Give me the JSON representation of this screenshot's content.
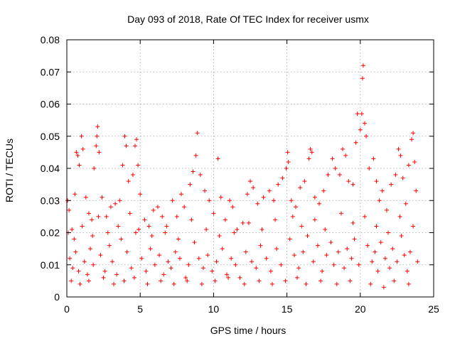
{
  "chart_data": {
    "type": "scatter",
    "title": "Day 093 of 2018, Rate Of TEC Index for receiver usmx",
    "xlabel": "GPS time / hours",
    "ylabel": "ROTI / TECUs",
    "xlim": [
      0,
      25
    ],
    "ylim": [
      0,
      0.08
    ],
    "xticks": [
      0,
      5,
      10,
      15,
      20,
      25
    ],
    "yticks": [
      0,
      0.01,
      0.02,
      0.03,
      0.04,
      0.05,
      0.06,
      0.07,
      0.08
    ],
    "xtick_labels": [
      "0",
      "5",
      "10",
      "15",
      "20",
      "25"
    ],
    "ytick_labels": [
      "0",
      "0.01",
      "0.02",
      "0.03",
      "0.04",
      "0.05",
      "0.06",
      "0.07",
      "0.08"
    ],
    "grid": true,
    "marker": "+",
    "series_color": "#ff0000",
    "series": [
      {
        "name": "ROTI",
        "points": [
          [
            0.05,
            0.03
          ],
          [
            0.15,
            0.027
          ],
          [
            0.35,
            0.021
          ],
          [
            0.55,
            0.032
          ],
          [
            0.65,
            0.045
          ],
          [
            0.75,
            0.044
          ],
          [
            0.85,
            0.041
          ],
          [
            1.0,
            0.05
          ],
          [
            1.1,
            0.046
          ],
          [
            1.3,
            0.031
          ],
          [
            1.5,
            0.026
          ],
          [
            1.7,
            0.024
          ],
          [
            1.85,
            0.04
          ],
          [
            2.0,
            0.047
          ],
          [
            2.05,
            0.05
          ],
          [
            2.1,
            0.053
          ],
          [
            2.2,
            0.045
          ],
          [
            2.4,
            0.031
          ],
          [
            2.7,
            0.025
          ],
          [
            3.0,
            0.028
          ],
          [
            3.3,
            0.029
          ],
          [
            3.6,
            0.03
          ],
          [
            3.8,
            0.041
          ],
          [
            3.95,
            0.05
          ],
          [
            4.05,
            0.047
          ],
          [
            4.2,
            0.036
          ],
          [
            4.5,
            0.038
          ],
          [
            4.65,
            0.047
          ],
          [
            4.75,
            0.049
          ],
          [
            4.85,
            0.041
          ],
          [
            5.0,
            0.032
          ],
          [
            5.3,
            0.024
          ],
          [
            5.6,
            0.022
          ],
          [
            5.9,
            0.027
          ],
          [
            6.2,
            0.028
          ],
          [
            6.5,
            0.025
          ],
          [
            6.8,
            0.022
          ],
          [
            7.2,
            0.03
          ],
          [
            7.5,
            0.025
          ],
          [
            7.8,
            0.032
          ],
          [
            8.0,
            0.028
          ],
          [
            8.4,
            0.035
          ],
          [
            8.6,
            0.039
          ],
          [
            8.8,
            0.044
          ],
          [
            8.9,
            0.051
          ],
          [
            9.1,
            0.038
          ],
          [
            9.4,
            0.033
          ],
          [
            9.7,
            0.03
          ],
          [
            10.0,
            0.026
          ],
          [
            10.3,
            0.043
          ],
          [
            10.5,
            0.031
          ],
          [
            10.8,
            0.024
          ],
          [
            11.1,
            0.03
          ],
          [
            11.3,
            0.028
          ],
          [
            11.6,
            0.021
          ],
          [
            12.0,
            0.023
          ],
          [
            12.3,
            0.032
          ],
          [
            12.5,
            0.036
          ],
          [
            12.7,
            0.034
          ],
          [
            13.0,
            0.029
          ],
          [
            13.4,
            0.031
          ],
          [
            13.8,
            0.033
          ],
          [
            14.1,
            0.03
          ],
          [
            14.4,
            0.035
          ],
          [
            14.7,
            0.037
          ],
          [
            14.95,
            0.04
          ],
          [
            15.05,
            0.045
          ],
          [
            15.1,
            0.042
          ],
          [
            15.3,
            0.03
          ],
          [
            15.6,
            0.028
          ],
          [
            15.9,
            0.034
          ],
          [
            16.2,
            0.036
          ],
          [
            16.5,
            0.043
          ],
          [
            16.6,
            0.046
          ],
          [
            16.7,
            0.045
          ],
          [
            16.9,
            0.031
          ],
          [
            17.2,
            0.029
          ],
          [
            17.5,
            0.033
          ],
          [
            17.8,
            0.038
          ],
          [
            18.1,
            0.043
          ],
          [
            18.3,
            0.04
          ],
          [
            18.6,
            0.038
          ],
          [
            18.8,
            0.046
          ],
          [
            19.0,
            0.044
          ],
          [
            19.2,
            0.036
          ],
          [
            19.5,
            0.035
          ],
          [
            19.7,
            0.048
          ],
          [
            19.8,
            0.057
          ],
          [
            20.0,
            0.052
          ],
          [
            20.1,
            0.057
          ],
          [
            20.15,
            0.068
          ],
          [
            20.2,
            0.072
          ],
          [
            20.3,
            0.054
          ],
          [
            20.4,
            0.05
          ],
          [
            20.6,
            0.04
          ],
          [
            20.9,
            0.043
          ],
          [
            21.1,
            0.036
          ],
          [
            21.3,
            0.03
          ],
          [
            21.5,
            0.033
          ],
          [
            21.8,
            0.027
          ],
          [
            22.1,
            0.035
          ],
          [
            22.4,
            0.038
          ],
          [
            22.6,
            0.046
          ],
          [
            22.75,
            0.044
          ],
          [
            22.9,
            0.037
          ],
          [
            23.1,
            0.029
          ],
          [
            23.3,
            0.041
          ],
          [
            23.5,
            0.049
          ],
          [
            23.6,
            0.051
          ],
          [
            23.7,
            0.042
          ],
          [
            23.8,
            0.033
          ],
          [
            0.2,
            0.012
          ],
          [
            0.4,
            0.009
          ],
          [
            0.6,
            0.014
          ],
          [
            0.8,
            0.008
          ],
          [
            1.2,
            0.011
          ],
          [
            1.4,
            0.007
          ],
          [
            1.6,
            0.015
          ],
          [
            1.8,
            0.01
          ],
          [
            2.3,
            0.013
          ],
          [
            2.6,
            0.008
          ],
          [
            2.9,
            0.016
          ],
          [
            3.1,
            0.011
          ],
          [
            3.4,
            0.007
          ],
          [
            3.7,
            0.018
          ],
          [
            4.1,
            0.014
          ],
          [
            4.4,
            0.009
          ],
          [
            4.7,
            0.02
          ],
          [
            5.1,
            0.012
          ],
          [
            5.4,
            0.008
          ],
          [
            5.7,
            0.015
          ],
          [
            6.0,
            0.01
          ],
          [
            6.3,
            0.013
          ],
          [
            6.6,
            0.007
          ],
          [
            6.9,
            0.011
          ],
          [
            7.1,
            0.009
          ],
          [
            7.4,
            0.014
          ],
          [
            7.7,
            0.012
          ],
          [
            8.1,
            0.006
          ],
          [
            8.3,
            0.01
          ],
          [
            8.7,
            0.017
          ],
          [
            9.0,
            0.012
          ],
          [
            9.3,
            0.009
          ],
          [
            9.6,
            0.013
          ],
          [
            9.9,
            0.008
          ],
          [
            10.2,
            0.011
          ],
          [
            10.6,
            0.015
          ],
          [
            10.9,
            0.007
          ],
          [
            11.2,
            0.012
          ],
          [
            11.5,
            0.01
          ],
          [
            11.8,
            0.006
          ],
          [
            12.2,
            0.014
          ],
          [
            12.6,
            0.011
          ],
          [
            12.9,
            0.009
          ],
          [
            13.2,
            0.016
          ],
          [
            13.6,
            0.012
          ],
          [
            13.9,
            0.008
          ],
          [
            14.3,
            0.015
          ],
          [
            14.6,
            0.01
          ],
          [
            15.2,
            0.018
          ],
          [
            15.5,
            0.013
          ],
          [
            15.8,
            0.009
          ],
          [
            16.1,
            0.014
          ],
          [
            16.4,
            0.019
          ],
          [
            16.8,
            0.011
          ],
          [
            17.1,
            0.016
          ],
          [
            17.4,
            0.008
          ],
          [
            17.7,
            0.013
          ],
          [
            18.0,
            0.017
          ],
          [
            18.2,
            0.01
          ],
          [
            18.5,
            0.014
          ],
          [
            18.9,
            0.009
          ],
          [
            19.1,
            0.015
          ],
          [
            19.4,
            0.012
          ],
          [
            19.6,
            0.018
          ],
          [
            19.9,
            0.01
          ],
          [
            20.5,
            0.016
          ],
          [
            20.8,
            0.011
          ],
          [
            21.0,
            0.014
          ],
          [
            21.2,
            0.008
          ],
          [
            21.4,
            0.017
          ],
          [
            21.7,
            0.012
          ],
          [
            22.0,
            0.009
          ],
          [
            22.2,
            0.015
          ],
          [
            22.5,
            0.011
          ],
          [
            22.8,
            0.019
          ],
          [
            23.0,
            0.013
          ],
          [
            23.2,
            0.008
          ],
          [
            23.4,
            0.014
          ],
          [
            23.9,
            0.011
          ],
          [
            0.3,
            0.005
          ],
          [
            0.9,
            0.004
          ],
          [
            1.5,
            0.005
          ],
          [
            2.5,
            0.006
          ],
          [
            3.2,
            0.004
          ],
          [
            3.9,
            0.005
          ],
          [
            4.6,
            0.006
          ],
          [
            5.5,
            0.004
          ],
          [
            6.4,
            0.005
          ],
          [
            7.3,
            0.004
          ],
          [
            8.2,
            0.005
          ],
          [
            9.2,
            0.004
          ],
          [
            10.1,
            0.005
          ],
          [
            11.0,
            0.006
          ],
          [
            12.1,
            0.004
          ],
          [
            13.1,
            0.005
          ],
          [
            14.0,
            0.004
          ],
          [
            14.9,
            0.005
          ],
          [
            15.7,
            0.006
          ],
          [
            16.3,
            0.004
          ],
          [
            17.3,
            0.005
          ],
          [
            18.4,
            0.004
          ],
          [
            19.3,
            0.005
          ],
          [
            20.7,
            0.004
          ],
          [
            21.6,
            0.003
          ],
          [
            22.3,
            0.005
          ],
          [
            23.3,
            0.004
          ],
          [
            0.1,
            0.02
          ],
          [
            0.5,
            0.018
          ],
          [
            1.05,
            0.022
          ],
          [
            1.75,
            0.019
          ],
          [
            2.15,
            0.025
          ],
          [
            2.8,
            0.02
          ],
          [
            3.5,
            0.022
          ],
          [
            4.3,
            0.026
          ],
          [
            4.9,
            0.021
          ],
          [
            5.8,
            0.019
          ],
          [
            6.7,
            0.02
          ],
          [
            7.6,
            0.018
          ],
          [
            8.5,
            0.024
          ],
          [
            9.5,
            0.021
          ],
          [
            10.4,
            0.019
          ],
          [
            11.4,
            0.02
          ],
          [
            12.4,
            0.023
          ],
          [
            13.3,
            0.021
          ],
          [
            14.2,
            0.024
          ],
          [
            15.4,
            0.025
          ],
          [
            16.0,
            0.022
          ],
          [
            16.9,
            0.024
          ],
          [
            17.6,
            0.021
          ],
          [
            18.7,
            0.026
          ],
          [
            19.5,
            0.023
          ],
          [
            20.3,
            0.025
          ],
          [
            21.1,
            0.022
          ],
          [
            21.9,
            0.02
          ],
          [
            22.7,
            0.025
          ],
          [
            23.6,
            0.022
          ]
        ]
      }
    ]
  }
}
